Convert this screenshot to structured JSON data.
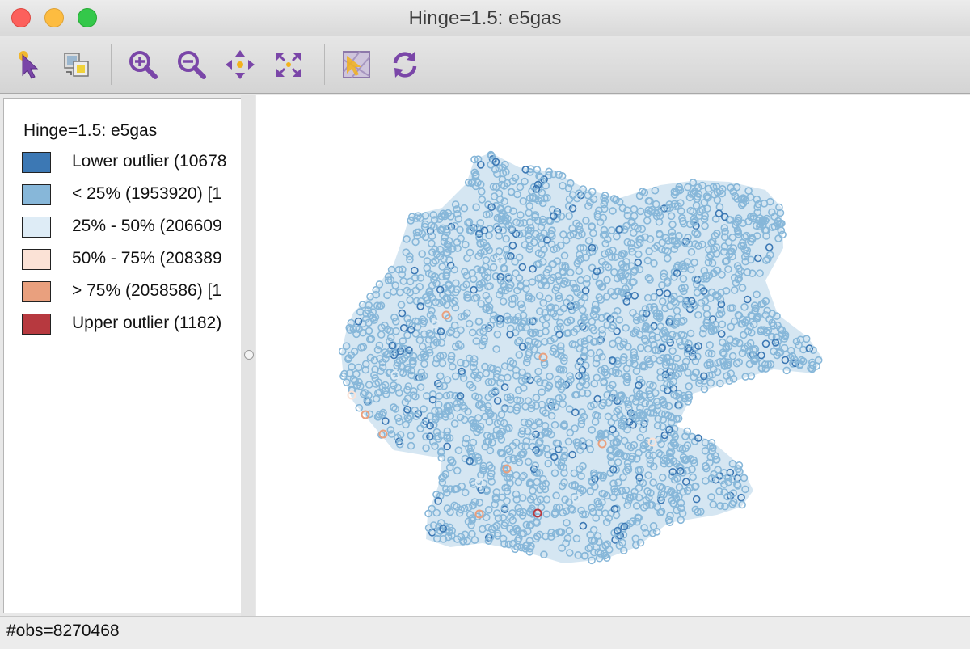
{
  "window": {
    "title": "Hinge=1.5: e5gas"
  },
  "toolbar": {
    "tools": [
      {
        "name": "select-tool",
        "icon": "pointer-select-icon"
      },
      {
        "name": "copy-tool",
        "icon": "copy-image-icon"
      },
      {
        "name": "zoom-in-tool",
        "icon": "zoom-in-icon"
      },
      {
        "name": "zoom-out-tool",
        "icon": "zoom-out-icon"
      },
      {
        "name": "pan-tool",
        "icon": "pan-arrows-icon"
      },
      {
        "name": "full-extent-tool",
        "icon": "full-extent-icon"
      },
      {
        "name": "basemap-tool",
        "icon": "basemap-icon"
      },
      {
        "name": "refresh-tool",
        "icon": "refresh-icon"
      }
    ]
  },
  "legend": {
    "title": "Hinge=1.5: e5gas",
    "items": [
      {
        "label": "Lower outlier (10678",
        "color": "#3c78b4"
      },
      {
        "label": "< 25% (1953920)  [1",
        "color": "#87b7d9"
      },
      {
        "label": "25% - 50% (206609",
        "color": "#deecf6"
      },
      {
        "label": "50% - 75% (208389",
        "color": "#fbe2d6"
      },
      {
        "label": "> 75% (2058586)  [1",
        "color": "#e9a07e"
      },
      {
        "label": "Upper outlier (1182)",
        "color": "#b7393f"
      }
    ]
  },
  "status": {
    "obs": "#obs=8270468"
  }
}
